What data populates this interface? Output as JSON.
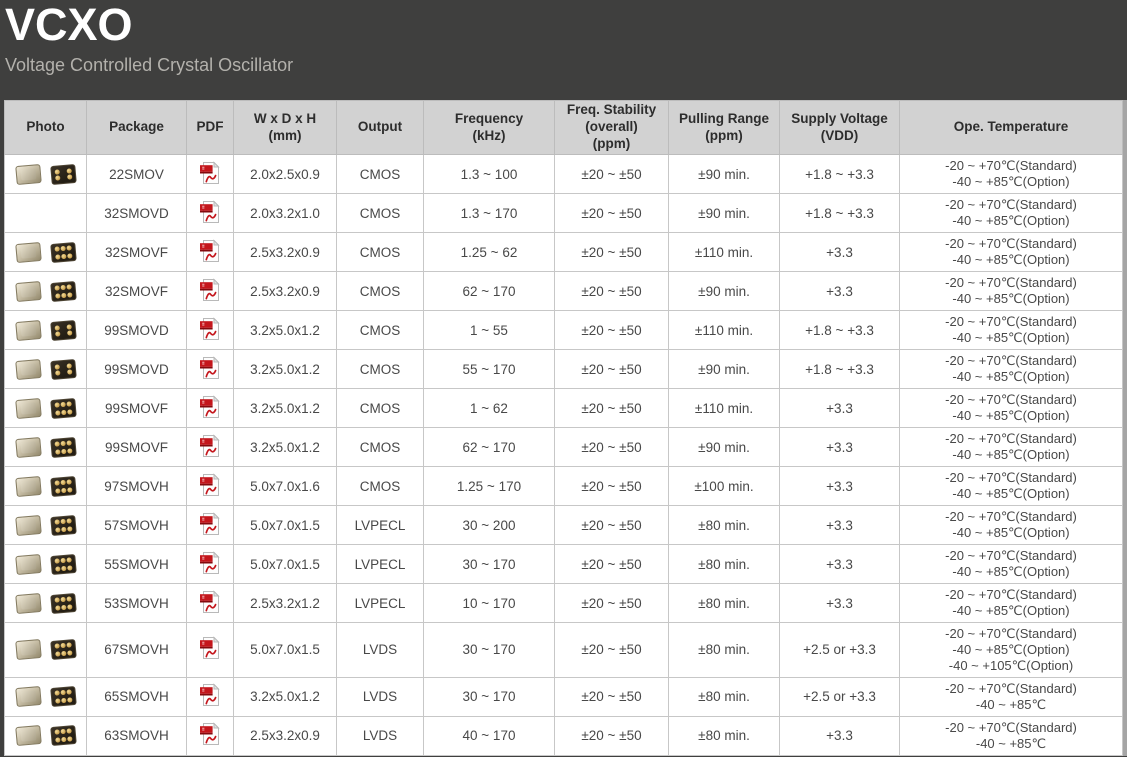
{
  "page": {
    "title": "VCXO",
    "subtitle": "Voltage Controlled Crystal Oscillator"
  },
  "colors": {
    "page_background": "#3f3f3e",
    "table_header_background": "#d2d2d2",
    "pdf_red": "#c4161c"
  },
  "icons": {
    "pdf": "pdf-file-icon",
    "photo_left": "component-top-view",
    "photo_right": "component-bottom-view"
  },
  "table": {
    "columns": [
      {
        "label": "Photo"
      },
      {
        "label": "Package"
      },
      {
        "label": "PDF"
      },
      {
        "label": "W x D x H\n(mm)"
      },
      {
        "label": "Output"
      },
      {
        "label": "Frequency\n(kHz)"
      },
      {
        "label": "Freq. Stability\n(overall)\n(ppm)"
      },
      {
        "label": "Pulling Range\n(ppm)"
      },
      {
        "label": "Supply Voltage\n(VDD)"
      },
      {
        "label": "Ope. Temperature"
      }
    ],
    "rows": [
      {
        "photo": true,
        "pads": 4,
        "package": "22SMOV",
        "size": "2.0x2.5x0.9",
        "output": "CMOS",
        "frequency": "1.3 ~ 100",
        "stability": "±20 ~ ±50",
        "pulling": "±90 min.",
        "voltage": "+1.8 ~ +3.3",
        "temperature": [
          "-20 ~ +70℃(Standard)",
          "-40 ~ +85℃(Option)"
        ]
      },
      {
        "photo": false,
        "pads": 0,
        "package": "32SMOVD",
        "size": "2.0x3.2x1.0",
        "output": "CMOS",
        "frequency": "1.3 ~ 170",
        "stability": "±20 ~ ±50",
        "pulling": "±90 min.",
        "voltage": "+1.8 ~ +3.3",
        "temperature": [
          "-20 ~ +70℃(Standard)",
          "-40 ~ +85℃(Option)"
        ]
      },
      {
        "photo": true,
        "pads": 6,
        "package": "32SMOVF",
        "size": "2.5x3.2x0.9",
        "output": "CMOS",
        "frequency": "1.25 ~ 62",
        "stability": "±20 ~ ±50",
        "pulling": "±110 min.",
        "voltage": "+3.3",
        "temperature": [
          "-20 ~ +70℃(Standard)",
          "-40 ~ +85℃(Option)"
        ]
      },
      {
        "photo": true,
        "pads": 6,
        "package": "32SMOVF",
        "size": "2.5x3.2x0.9",
        "output": "CMOS",
        "frequency": "62 ~ 170",
        "stability": "±20 ~ ±50",
        "pulling": "±90 min.",
        "voltage": "+3.3",
        "temperature": [
          "-20 ~ +70℃(Standard)",
          "-40 ~ +85℃(Option)"
        ]
      },
      {
        "photo": true,
        "pads": 4,
        "package": "99SMOVD",
        "size": "3.2x5.0x1.2",
        "output": "CMOS",
        "frequency": "1 ~ 55",
        "stability": "±20 ~ ±50",
        "pulling": "±110 min.",
        "voltage": "+1.8 ~ +3.3",
        "temperature": [
          "-20 ~ +70℃(Standard)",
          "-40 ~ +85℃(Option)"
        ]
      },
      {
        "photo": true,
        "pads": 4,
        "package": "99SMOVD",
        "size": "3.2x5.0x1.2",
        "output": "CMOS",
        "frequency": "55 ~ 170",
        "stability": "±20 ~ ±50",
        "pulling": "±90 min.",
        "voltage": "+1.8 ~ +3.3",
        "temperature": [
          "-20 ~ +70℃(Standard)",
          "-40 ~ +85℃(Option)"
        ]
      },
      {
        "photo": true,
        "pads": 6,
        "package": "99SMOVF",
        "size": "3.2x5.0x1.2",
        "output": "CMOS",
        "frequency": "1 ~ 62",
        "stability": "±20 ~ ±50",
        "pulling": "±110 min.",
        "voltage": "+3.3",
        "temperature": [
          "-20 ~ +70℃(Standard)",
          "-40 ~ +85℃(Option)"
        ]
      },
      {
        "photo": true,
        "pads": 6,
        "package": "99SMOVF",
        "size": "3.2x5.0x1.2",
        "output": "CMOS",
        "frequency": "62 ~ 170",
        "stability": "±20 ~ ±50",
        "pulling": "±90 min.",
        "voltage": "+3.3",
        "temperature": [
          "-20 ~ +70℃(Standard)",
          "-40 ~ +85℃(Option)"
        ]
      },
      {
        "photo": true,
        "pads": 6,
        "package": "97SMOVH",
        "size": "5.0x7.0x1.6",
        "output": "CMOS",
        "frequency": "1.25 ~ 170",
        "stability": "±20 ~ ±50",
        "pulling": "±100 min.",
        "voltage": "+3.3",
        "temperature": [
          "-20 ~ +70℃(Standard)",
          "-40 ~ +85℃(Option)"
        ]
      },
      {
        "photo": true,
        "pads": 6,
        "package": "57SMOVH",
        "size": "5.0x7.0x1.5",
        "output": "LVPECL",
        "frequency": "30 ~ 200",
        "stability": "±20 ~ ±50",
        "pulling": "±80 min.",
        "voltage": "+3.3",
        "temperature": [
          "-20 ~ +70℃(Standard)",
          "-40 ~ +85℃(Option)"
        ]
      },
      {
        "photo": true,
        "pads": 6,
        "package": "55SMOVH",
        "size": "5.0x7.0x1.5",
        "output": "LVPECL",
        "frequency": "30 ~ 170",
        "stability": "±20 ~ ±50",
        "pulling": "±80 min.",
        "voltage": "+3.3",
        "temperature": [
          "-20 ~ +70℃(Standard)",
          "-40 ~ +85℃(Option)"
        ]
      },
      {
        "photo": true,
        "pads": 6,
        "package": "53SMOVH",
        "size": "2.5x3.2x1.2",
        "output": "LVPECL",
        "frequency": "10 ~ 170",
        "stability": "±20 ~ ±50",
        "pulling": "±80 min.",
        "voltage": "+3.3",
        "temperature": [
          "-20 ~ +70℃(Standard)",
          "-40 ~ +85℃(Option)"
        ]
      },
      {
        "photo": true,
        "pads": 6,
        "package": "67SMOVH",
        "size": "5.0x7.0x1.5",
        "output": "LVDS",
        "frequency": "30 ~ 170",
        "stability": "±20 ~ ±50",
        "pulling": "±80 min.",
        "voltage": "+2.5 or +3.3",
        "temperature": [
          "-20 ~ +70℃(Standard)",
          "-40 ~ +85℃(Option)",
          "-40 ~ +105℃(Option)"
        ]
      },
      {
        "photo": true,
        "pads": 6,
        "package": "65SMOVH",
        "size": "3.2x5.0x1.2",
        "output": "LVDS",
        "frequency": "30 ~ 170",
        "stability": "±20 ~ ±50",
        "pulling": "±80 min.",
        "voltage": "+2.5 or +3.3",
        "temperature": [
          "-20 ~ +70℃(Standard)",
          "-40 ~ +85℃"
        ]
      },
      {
        "photo": true,
        "pads": 6,
        "package": "63SMOVH",
        "size": "2.5x3.2x0.9",
        "output": "LVDS",
        "frequency": "40 ~ 170",
        "stability": "±20 ~ ±50",
        "pulling": "±80 min.",
        "voltage": "+3.3",
        "temperature": [
          "-20 ~ +70℃(Standard)",
          "-40 ~ +85℃"
        ]
      }
    ]
  }
}
